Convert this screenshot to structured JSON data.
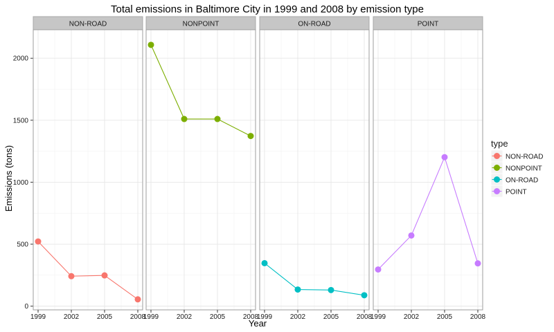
{
  "chart_data": {
    "type": "line",
    "title": "Total emissions in Baltimore City in 1999 and 2008 by emission type",
    "xlabel": "Year",
    "ylabel": "Emissions (tons)",
    "x": [
      1999,
      2002,
      2005,
      2008
    ],
    "x_ticks": [
      "1999",
      "2002",
      "2005",
      "2008"
    ],
    "xlim": [
      1999,
      2008
    ],
    "y_ticks": [
      0,
      500,
      1000,
      1500,
      2000
    ],
    "ylim": [
      -30,
      2230
    ],
    "grid": true,
    "legend": {
      "title": "type",
      "position": "right"
    },
    "panels": [
      {
        "name": "NON-ROAD",
        "color": "#F8766D",
        "values": [
          522,
          242,
          248,
          55
        ]
      },
      {
        "name": "NONPOINT",
        "color": "#7CAE00",
        "values": [
          2108,
          1510,
          1510,
          1373
        ]
      },
      {
        "name": "ON-ROAD",
        "color": "#00BFC4",
        "values": [
          347,
          134,
          130,
          88
        ]
      },
      {
        "name": "POINT",
        "color": "#C77CFF",
        "values": [
          296,
          570,
          1202,
          345
        ]
      }
    ]
  }
}
